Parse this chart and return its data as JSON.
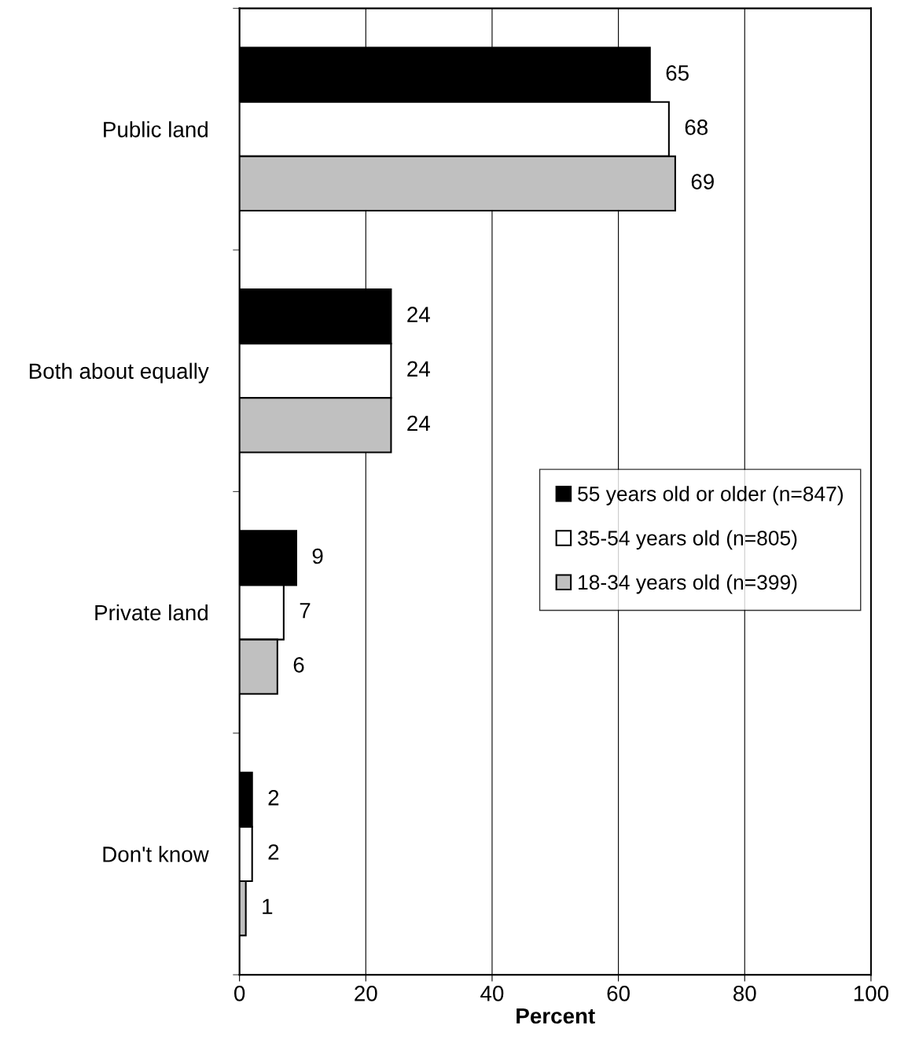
{
  "chart_data": {
    "type": "bar",
    "orientation": "horizontal",
    "xlabel": "Percent",
    "categories": [
      "Public land",
      "Both about equally",
      "Private land",
      "Don't know"
    ],
    "series": [
      {
        "name": "55 years old or older (n=847)",
        "color": "#000000",
        "values": [
          65,
          24,
          9,
          2
        ]
      },
      {
        "name": "35-54 years old (n=805)",
        "color": "#ffffff",
        "values": [
          68,
          24,
          7,
          2
        ]
      },
      {
        "name": "18-34 years old (n=399)",
        "color": "#c0c0c0",
        "values": [
          69,
          24,
          6,
          1
        ]
      }
    ],
    "xlim": [
      0,
      100
    ],
    "xticks": [
      0,
      20,
      40,
      60,
      80,
      100
    ],
    "grid": "x",
    "legend": "right",
    "data_labels": true
  }
}
